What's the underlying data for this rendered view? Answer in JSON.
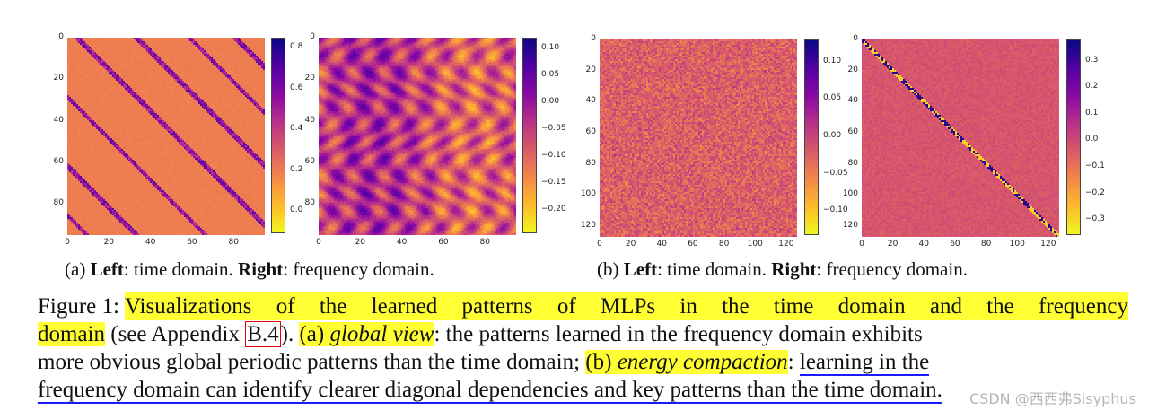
{
  "chart_data": [
    {
      "type": "heatmap",
      "title": "",
      "panel": "a-left",
      "description_of_values": "time-domain MLP weight pattern, mostly ~0.2 with diagonal bands up to ~0.8",
      "xticks": [
        "0",
        "20",
        "40",
        "60",
        "80"
      ],
      "yticks": [
        "0",
        "20",
        "40",
        "60",
        "80"
      ],
      "xlim": [
        0,
        95
      ],
      "ylim": [
        0,
        95
      ],
      "colorbar_ticks": [
        "0.8",
        "0.6",
        "0.4",
        "0.2",
        "0.0"
      ],
      "colorbar_range": [
        -0.1,
        0.85
      ],
      "colormap": "plasma_r"
    },
    {
      "type": "heatmap",
      "title": "",
      "panel": "a-right",
      "description_of_values": "frequency-domain pattern with global periodic arcs",
      "xticks": [
        "0",
        "20",
        "40",
        "60",
        "80"
      ],
      "yticks": [
        "0",
        "20",
        "40",
        "60",
        "80"
      ],
      "xlim": [
        0,
        95
      ],
      "ylim": [
        0,
        95
      ],
      "colorbar_ticks": [
        "0.10",
        "0.05",
        "0.00",
        "−0.05",
        "−0.10",
        "−0.15",
        "−0.20"
      ],
      "colorbar_range": [
        -0.24,
        0.12
      ],
      "colormap": "plasma_r"
    },
    {
      "type": "heatmap",
      "title": "",
      "panel": "b-left",
      "description_of_values": "time-domain noise-like pattern",
      "xticks": [
        "0",
        "20",
        "40",
        "60",
        "80",
        "100",
        "120"
      ],
      "yticks": [
        "0",
        "20",
        "40",
        "60",
        "80",
        "100",
        "120"
      ],
      "xlim": [
        0,
        127
      ],
      "ylim": [
        0,
        127
      ],
      "colorbar_ticks": [
        "0.10",
        "0.05",
        "0.00",
        "−0.05",
        "−0.10"
      ],
      "colorbar_range": [
        -0.13,
        0.13
      ],
      "colormap": "plasma_r"
    },
    {
      "type": "heatmap",
      "title": "",
      "panel": "b-right",
      "description_of_values": "frequency-domain pattern with a clear main diagonal",
      "xticks": [
        "0",
        "20",
        "40",
        "60",
        "80",
        "100",
        "120"
      ],
      "yticks": [
        "0",
        "20",
        "40",
        "60",
        "80",
        "100",
        "120"
      ],
      "xlim": [
        0,
        127
      ],
      "ylim": [
        0,
        127
      ],
      "colorbar_ticks": [
        "0.3",
        "0.2",
        "0.1",
        "0.0",
        "−0.1",
        "−0.2",
        "−0.3"
      ],
      "colorbar_range": [
        -0.35,
        0.38
      ],
      "colormap": "plasma_r"
    }
  ],
  "subcaptions": {
    "a": {
      "prefix": "(a) ",
      "left_bold": "Left",
      "left_text": ": time domain. ",
      "right_bold": "Right",
      "right_text": ": frequency domain."
    },
    "b": {
      "prefix": "(b) ",
      "left_bold": "Left",
      "left_text": ": time domain. ",
      "right_bold": "Right",
      "right_text": ": frequency domain."
    }
  },
  "figure_caption": {
    "label": "Figure 1: ",
    "hl1_line1": "Visualizations of the learned patterns of MLPs in the time domain and the frequency",
    "hl1_line2": "domain",
    "see_text": " (see Appendix ",
    "ref": "B.4",
    "after_ref": "). ",
    "hl2_prefix": "(a) ",
    "hl2_italic": "global view",
    "text_a": ": the patterns learned in the frequency domain exhibits",
    "line3_text": "more obvious global periodic patterns than the time domain; ",
    "hl3_prefix": "(b) ",
    "hl3_italic": "energy compaction",
    "line3_colon": ": ",
    "ul_line3": "learning in the",
    "ul_line4": "frequency domain can identify clearer diagonal dependencies and key patterns than the time domain."
  },
  "watermark": "CSDN @西西弗Sisyphus",
  "colors": {
    "highlight": "#ffff33",
    "ref_box": "#e00000",
    "underline": "#1a1aff"
  }
}
